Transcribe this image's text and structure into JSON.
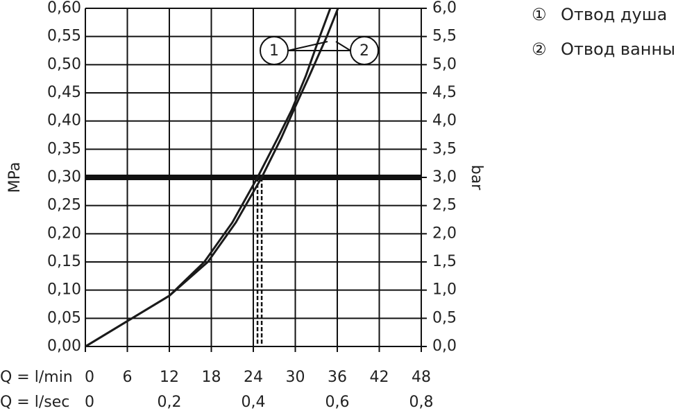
{
  "chart_data": {
    "type": "line",
    "y_label": "MPa",
    "y2_label": "bar",
    "x_label": "Q = l/min",
    "x2_label": "Q = l/sec",
    "xlim": [
      0,
      48
    ],
    "xticks": [
      0,
      6,
      12,
      18,
      24,
      30,
      36,
      42,
      48
    ],
    "x2lim": [
      0,
      0.8
    ],
    "x2ticks": [
      0,
      {
        "value": 0.2,
        "label": "0,2"
      },
      {
        "value": 0.4,
        "label": "0,4"
      },
      {
        "value": 0.6,
        "label": "0,6"
      },
      {
        "value": 0.8,
        "label": "0,8"
      }
    ],
    "ylim": [
      0,
      0.6
    ],
    "yticks": [
      {
        "value": 0,
        "label": "0,00"
      },
      {
        "value": 0.05,
        "label": "0,05"
      },
      {
        "value": 0.1,
        "label": "0,10"
      },
      {
        "value": 0.15,
        "label": "0,15"
      },
      {
        "value": 0.2,
        "label": "0,20"
      },
      {
        "value": 0.25,
        "label": "0,25"
      },
      {
        "value": 0.3,
        "label": "0,30"
      },
      {
        "value": 0.35,
        "label": "0,35"
      },
      {
        "value": 0.4,
        "label": "0,40"
      },
      {
        "value": 0.45,
        "label": "0,45"
      },
      {
        "value": 0.5,
        "label": "0,50"
      },
      {
        "value": 0.55,
        "label": "0,55"
      },
      {
        "value": 0.6,
        "label": "0,60"
      }
    ],
    "y2lim": [
      0,
      6
    ],
    "y2ticks": [
      {
        "value": 0,
        "label": "0,0"
      },
      {
        "value": 0.5,
        "label": "0,5"
      },
      {
        "value": 1,
        "label": "1,0"
      },
      {
        "value": 1.5,
        "label": "1,5"
      },
      {
        "value": 2,
        "label": "2,0"
      },
      {
        "value": 2.5,
        "label": "2,5"
      },
      {
        "value": 3,
        "label": "3,0"
      },
      {
        "value": 3.5,
        "label": "3,5"
      },
      {
        "value": 4,
        "label": "4,0"
      },
      {
        "value": 4.5,
        "label": "4,5"
      },
      {
        "value": 5,
        "label": "5,0"
      },
      {
        "value": 5.5,
        "label": "5,5"
      },
      {
        "value": 6,
        "label": "6,0"
      }
    ],
    "grid": true,
    "reference_y": 0.3,
    "legend_symbols": [
      "①",
      "②"
    ],
    "callouts": [
      "1",
      "2"
    ],
    "series": [
      {
        "name": "Отвод душа",
        "color": "#1a1a1a",
        "x": [
          0,
          6,
          12,
          17,
          21,
          24.6,
          27.5,
          29.5,
          31.5,
          33.5,
          35
        ],
        "values": [
          0,
          0.045,
          0.09,
          0.15,
          0.22,
          0.3,
          0.37,
          0.42,
          0.48,
          0.55,
          0.6
        ]
      },
      {
        "name": "Отвод ванны",
        "color": "#1a1a1a",
        "x": [
          0,
          6,
          12,
          17.5,
          21.5,
          25.2,
          28,
          29.8,
          32,
          34.5,
          36.1
        ],
        "values": [
          0,
          0.045,
          0.09,
          0.15,
          0.22,
          0.3,
          0.37,
          0.42,
          0.48,
          0.55,
          0.6
        ]
      }
    ]
  }
}
